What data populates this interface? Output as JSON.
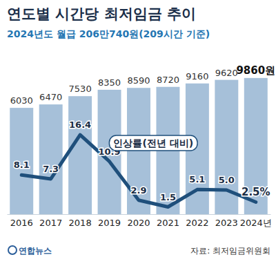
{
  "chart_data": {
    "type": "bar",
    "title": "연도별 시간당 최저임금 추이",
    "subtitle": "2024년도 월급 206만740원(209시간 기준)",
    "source": "자료: 최저임금위원회",
    "logo": "연합뉴스",
    "categories": [
      "2016",
      "2017",
      "2018",
      "2019",
      "2020",
      "2021",
      "2022",
      "2023",
      "2024년"
    ],
    "ylim": [
      -7600,
      11000
    ],
    "y2lim": [
      0,
      30
    ],
    "tick_labels": "x",
    "data_labels": true,
    "series": [
      {
        "type": "bar",
        "color": "#a6c0d9",
        "values": [
          6030,
          6470,
          7530,
          8350,
          8590,
          8720,
          9160,
          9620,
          9860
        ],
        "value_labels": [
          "6030",
          "6470",
          "7530",
          "8350",
          "8590",
          "8720",
          "9160",
          "9620",
          "9860원"
        ]
      },
      {
        "name": "인상률(전년 대비)",
        "type": "line",
        "axis": "y2",
        "color": "#1f4f7b",
        "values": [
          8.1,
          7.3,
          16.4,
          10.9,
          2.9,
          1.5,
          5.1,
          5.0,
          2.5
        ],
        "value_labels": [
          "8.1",
          "7.3",
          "16.4",
          "10.9",
          "2.9",
          "1.5",
          "5.1",
          "5.0",
          "2.5%"
        ]
      }
    ]
  }
}
